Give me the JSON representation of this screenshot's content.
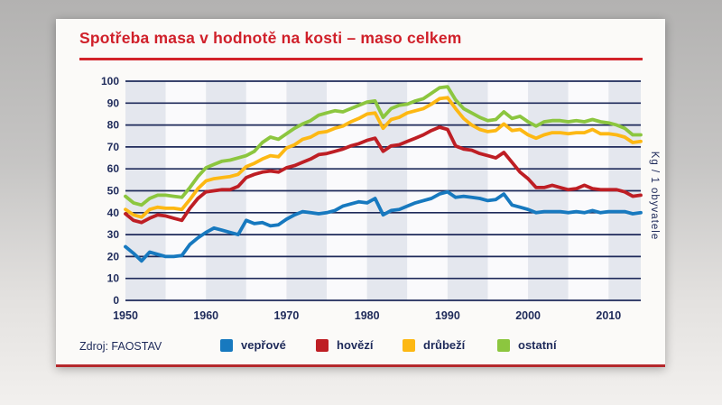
{
  "card": {
    "title": "Spotřeba masa v hodnotě na kosti – maso celkem",
    "title_color": "#d0202a",
    "source": "Zdroj: FAOSTAV"
  },
  "legend": {
    "items": [
      {
        "label": "vepřové",
        "color": "#1779bf"
      },
      {
        "label": "hovězí",
        "color": "#be1e24"
      },
      {
        "label": "drůbeží",
        "color": "#fdb813"
      },
      {
        "label": "ostatní",
        "color": "#8cc63f"
      }
    ]
  },
  "chart_data": {
    "type": "line",
    "title": "Spotřeba masa v hodnotě na kosti – maso celkem",
    "xlabel": "",
    "ylabel": "Kg / 1 obyvatele",
    "x_start": 1950,
    "x_end": 2014,
    "x_step": 1,
    "xticks": [
      1950,
      1960,
      1970,
      1980,
      1990,
      2000,
      2010
    ],
    "yticks": [
      0,
      10,
      20,
      30,
      40,
      50,
      60,
      70,
      80,
      90,
      100
    ],
    "ylim": [
      0,
      100
    ],
    "grid": true,
    "legend_position": "bottom",
    "series": [
      {
        "name": "vepřové",
        "color": "#1779bf",
        "values": [
          24.5,
          21.5,
          18,
          22,
          21,
          20,
          20,
          20.5,
          25.5,
          28.5,
          31,
          33,
          32,
          31,
          30,
          36.5,
          35,
          35.5,
          34,
          34.5,
          37,
          39,
          40.5,
          40,
          39.5,
          40,
          41,
          43,
          44,
          45,
          44.5,
          46.5,
          39,
          41,
          41.5,
          43,
          44.5,
          45.5,
          46.5,
          48.5,
          49.5,
          47,
          47.5,
          47,
          46.5,
          45.5,
          46,
          48.5,
          43.5,
          42.5,
          41.5,
          40,
          40.5,
          40.5,
          40.5,
          40,
          40.5,
          40,
          41,
          40,
          40.5,
          40.5,
          40.5,
          39.5,
          40
        ]
      },
      {
        "name": "hovězí",
        "color": "#be1e24",
        "values": [
          39.5,
          36.5,
          35.5,
          37.5,
          39,
          38.5,
          37.5,
          36.5,
          42,
          46.5,
          49.5,
          50,
          50.5,
          50.5,
          52,
          56,
          57.5,
          58.5,
          59,
          58.5,
          60.5,
          61.5,
          63,
          64.5,
          66.5,
          67,
          68,
          69,
          70.5,
          71.5,
          73,
          74,
          68,
          70.5,
          71,
          72.5,
          74,
          75.5,
          77.5,
          79,
          78,
          70.5,
          69,
          68.5,
          67,
          66,
          65,
          67.5,
          63,
          58.5,
          55.5,
          51.5,
          51.5,
          52.5,
          51.5,
          50.5,
          51,
          52.5,
          51,
          50.5,
          50.5,
          50.5,
          49.5,
          47.5,
          48
        ]
      },
      {
        "name": "drůbeží",
        "color": "#fdb813",
        "values": [
          41.5,
          39,
          38,
          41.5,
          42.5,
          42,
          42,
          41.5,
          46,
          51,
          54.5,
          55.5,
          56,
          56.5,
          57.5,
          61,
          62.5,
          64.5,
          66,
          65.5,
          69.5,
          71,
          73.5,
          74.5,
          76.5,
          77,
          78.5,
          79.5,
          81.5,
          83,
          85,
          85.5,
          78.5,
          82.5,
          83.5,
          85.5,
          86.5,
          87.5,
          89.5,
          92,
          92.5,
          87.5,
          83,
          80,
          78,
          77,
          77.5,
          80.5,
          77.5,
          78,
          75.5,
          74,
          75.5,
          76.5,
          76.5,
          76,
          76.5,
          76.5,
          78,
          76,
          76,
          75.5,
          74.5,
          72,
          72.5
        ]
      },
      {
        "name": "ostatní",
        "color": "#8cc63f",
        "values": [
          47.5,
          44.5,
          43.5,
          46.5,
          48,
          48,
          47.5,
          47,
          51.5,
          56.5,
          60.5,
          62,
          63.5,
          64,
          65,
          66,
          68,
          72,
          74.5,
          73.5,
          76,
          78.5,
          80.5,
          82,
          84.5,
          85.5,
          86.5,
          86,
          87.5,
          89,
          90.5,
          91,
          83.5,
          87.5,
          89,
          89.5,
          91,
          92,
          94.5,
          97,
          97.5,
          91.5,
          87.5,
          85.5,
          83.5,
          82,
          82.5,
          86,
          83,
          84,
          81.5,
          79.5,
          81.5,
          82,
          82,
          81.5,
          82,
          81.5,
          82.5,
          81.5,
          81,
          80,
          78.5,
          75.5,
          75.5
        ]
      }
    ],
    "styles": {
      "grid_color": "#1e2a5a",
      "band_color_a": "#e4e7ee",
      "band_color_b": "#fafafc",
      "band_years": 5
    }
  }
}
